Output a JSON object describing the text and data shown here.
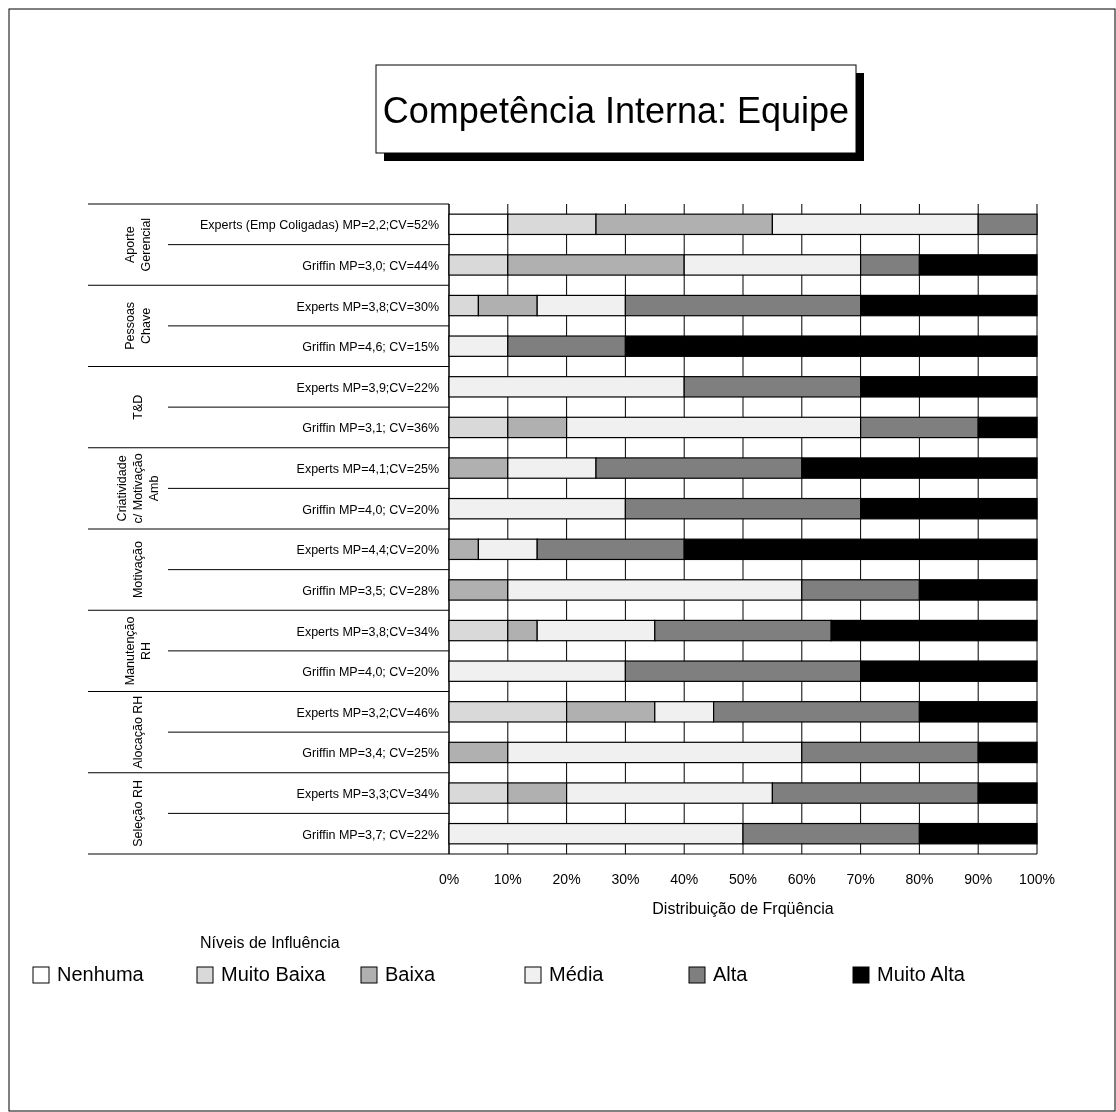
{
  "chart_data": {
    "type": "bar",
    "orientation": "horizontal",
    "stacked": true,
    "title": "Competência Interna: Equipe",
    "xlabel": "Distribuição de Frqüência",
    "legend_title": "Níveis de Influência",
    "legend": "bottom",
    "grid": "x",
    "categories": [
      "Experts (Emp Coligadas) MP=2,2;CV=52%",
      "Griffin MP=3,0; CV=44%",
      "Experts MP=3,8;CV=30%",
      "Griffin MP=4,6; CV=15%",
      "Experts MP=3,9;CV=22%",
      "Griffin MP=3,1; CV=36%",
      "Experts MP=4,1;CV=25%",
      "Griffin MP=4,0; CV=20%",
      "Experts MP=4,4;CV=20%",
      "Griffin MP=3,5; CV=28%",
      "Experts MP=3,8;CV=34%",
      "Griffin MP=4,0; CV=20%",
      "Experts MP=3,2;CV=46%",
      "Griffin MP=3,4; CV=25%",
      "Experts MP=3,3;CV=34%",
      "Griffin MP=3,7; CV=22%"
    ],
    "annotations": [
      "Aporte\nGerencial",
      "Pessoas\nChave",
      "T&D",
      "Criatividade\nc/ Motivação\nAmb",
      "Motivação",
      "Manutenção\nRH",
      "Alocação RH",
      "Seleção RH"
    ],
    "xlim": [
      0,
      100
    ],
    "xticks": [
      {
        "value": 0,
        "label": "0%"
      },
      {
        "value": 10,
        "label": "10%"
      },
      {
        "value": 20,
        "label": "20%"
      },
      {
        "value": 30,
        "label": "30%"
      },
      {
        "value": 40,
        "label": "40%"
      },
      {
        "value": 50,
        "label": "50%"
      },
      {
        "value": 60,
        "label": "60%"
      },
      {
        "value": 70,
        "label": "70%"
      },
      {
        "value": 80,
        "label": "80%"
      },
      {
        "value": 90,
        "label": "90%"
      },
      {
        "value": 100,
        "label": "100%"
      }
    ],
    "series": [
      {
        "name": "Nenhuma",
        "color": "#ffffff",
        "values": [
          10,
          0,
          0,
          0,
          0,
          0,
          0,
          0,
          0,
          0,
          0,
          0,
          0,
          0,
          0,
          0
        ]
      },
      {
        "name": "Muito Baixa",
        "color": "#d9d9d9",
        "values": [
          15,
          10,
          5,
          0,
          0,
          10,
          0,
          0,
          0,
          0,
          10,
          0,
          20,
          0,
          10,
          0
        ]
      },
      {
        "name": "Baixa",
        "color": "#b0b0b0",
        "values": [
          30,
          30,
          10,
          0,
          0,
          10,
          10,
          0,
          5,
          10,
          5,
          0,
          15,
          10,
          10,
          0
        ]
      },
      {
        "name": "Média",
        "color": "#f0f0f0",
        "values": [
          35,
          30,
          15,
          10,
          40,
          50,
          15,
          30,
          10,
          50,
          20,
          30,
          10,
          50,
          35,
          50
        ]
      },
      {
        "name": "Alta",
        "color": "#7f7f7f",
        "values": [
          10,
          10,
          40,
          20,
          30,
          20,
          35,
          40,
          25,
          20,
          30,
          40,
          35,
          30,
          35,
          30
        ]
      },
      {
        "name": "Muito Alta",
        "color": "#000000",
        "values": [
          0,
          20,
          30,
          70,
          30,
          10,
          40,
          30,
          60,
          20,
          35,
          30,
          20,
          10,
          10,
          20
        ]
      }
    ]
  }
}
